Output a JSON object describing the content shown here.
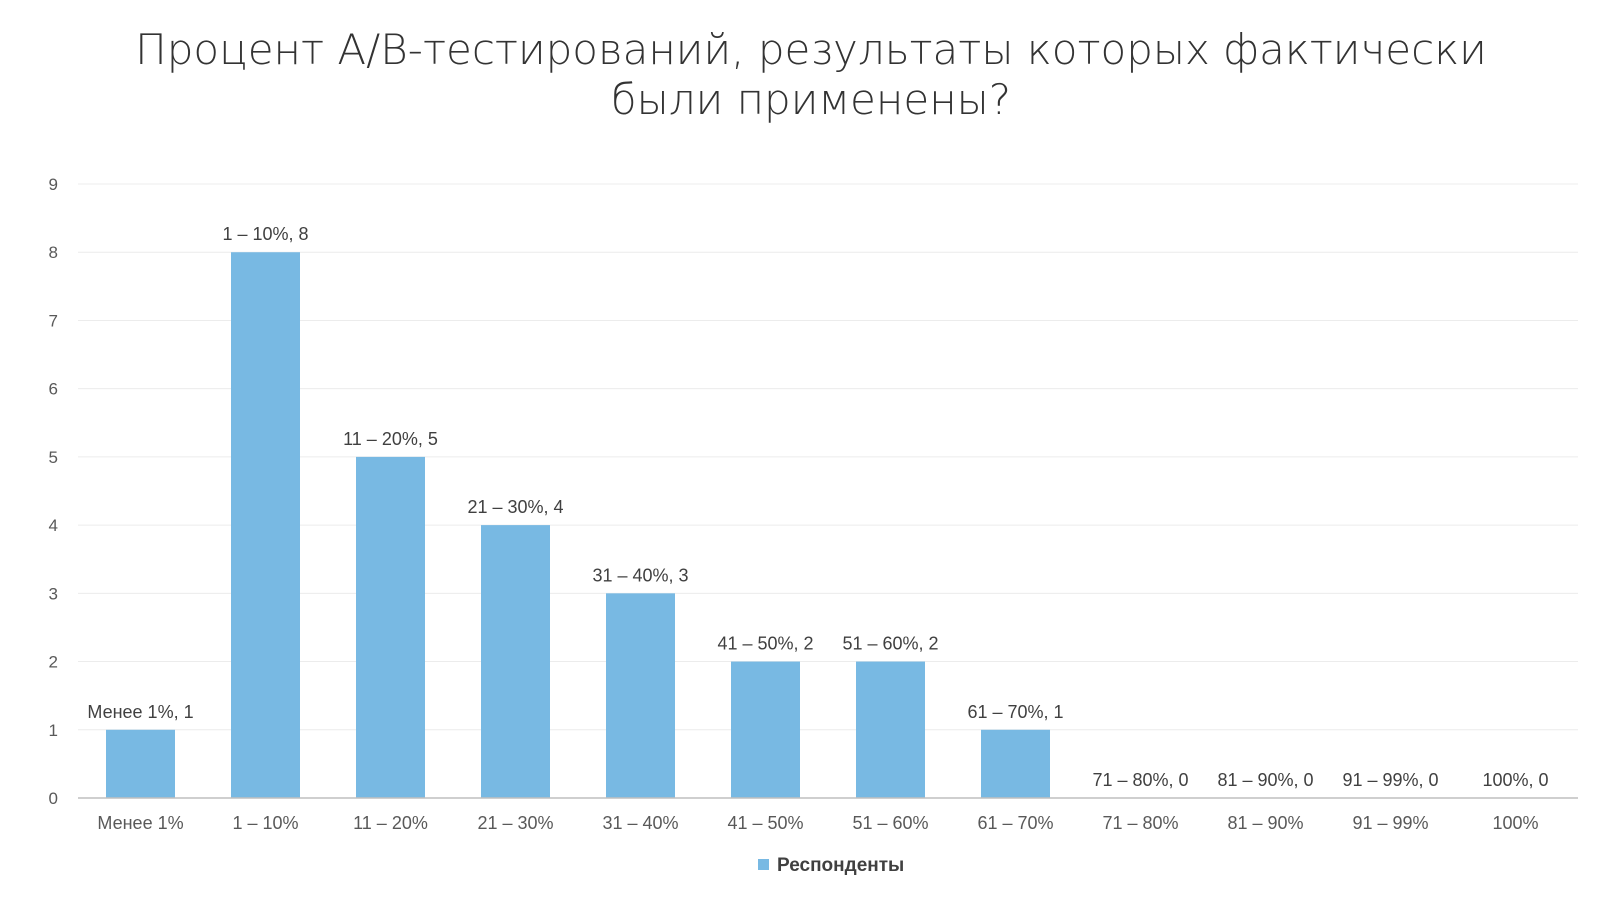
{
  "chart_data": {
    "type": "bar",
    "title": [
      "Процент А/В-тестирований, результаты которых фактически",
      "были применены?"
    ],
    "categories": [
      "Менее 1%",
      "1 – 10%",
      "11 – 20%",
      "21 – 30%",
      "31 – 40%",
      "41 – 50%",
      "51 – 60%",
      "61 – 70%",
      "71 – 80%",
      "81 – 90%",
      "91 – 99%",
      "100%"
    ],
    "series": [
      {
        "name": "Респонденты",
        "values": [
          1,
          8,
          5,
          4,
          3,
          2,
          2,
          1,
          0,
          0,
          0,
          0
        ],
        "color": "#78b9e3"
      }
    ],
    "data_labels": [
      "Менее 1%, 1",
      "1 – 10%, 8",
      "11 – 20%, 5",
      "21 – 30%, 4",
      "31 – 40%, 3",
      "41 – 50%, 2",
      "51 – 60%, 2",
      "61 – 70%, 1",
      "71 – 80%, 0",
      "81 – 90%, 0",
      "91 – 99%, 0",
      "100%, 0"
    ],
    "y_ticks": [
      0,
      1,
      2,
      3,
      4,
      5,
      6,
      7,
      8,
      9
    ],
    "ylim": [
      0,
      9
    ],
    "grid": true,
    "legend": "bottom",
    "xlabel": "",
    "ylabel": ""
  }
}
